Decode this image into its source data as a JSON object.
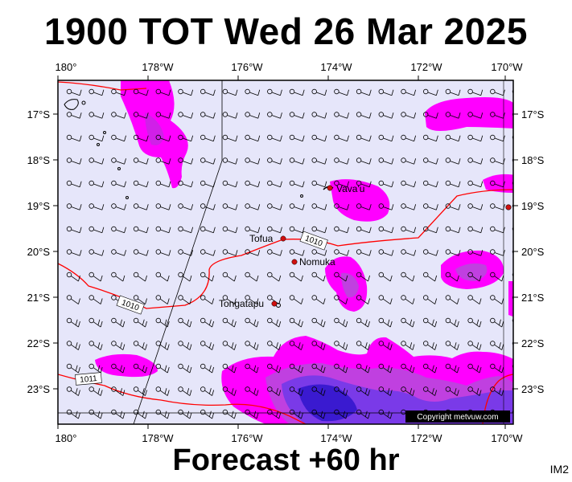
{
  "header": {
    "title": "1900 TOT Wed 26 Mar 2025"
  },
  "footer": {
    "forecast_label": "Forecast +60 hr",
    "image_code": "IM2"
  },
  "map": {
    "background_color": "#e6e6fa",
    "lon_ticks": [
      "180°",
      "178°W",
      "176°W",
      "174°W",
      "172°W",
      "170°W"
    ],
    "lat_ticks": [
      "17°S",
      "18°S",
      "19°S",
      "20°S",
      "21°S",
      "22°S",
      "23°S"
    ],
    "places": [
      {
        "name": "Vava'u"
      },
      {
        "name": "Tofua"
      },
      {
        "name": "Nomuka"
      },
      {
        "name": "Tongatapu"
      }
    ],
    "isobar_labels": [
      "1010",
      "1010",
      "1011"
    ],
    "copyright": "Copyright metvuw.com",
    "precip_colors": {
      "light": "#ff00ff",
      "medium": "#c040e0",
      "heavy": "#6020e0",
      "extreme": "#3010c0"
    },
    "isobar_color": "#ff0000"
  }
}
